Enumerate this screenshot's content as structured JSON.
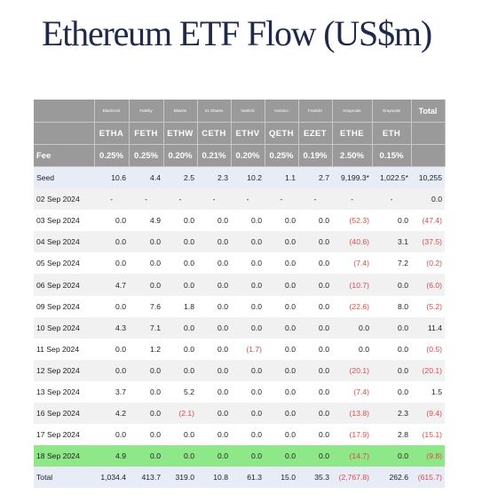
{
  "title": "Ethereum ETF Flow (US$m)",
  "chart_data": {
    "type": "table",
    "issuers": [
      "Blackrock",
      "Fidelity",
      "Bitwise",
      "21 Shares",
      "VanEck",
      "Invesco",
      "Franklin",
      "Grayscale",
      "Grayscale"
    ],
    "total_label": "Total",
    "tickers": [
      "ETHA",
      "FETH",
      "ETHW",
      "CETH",
      "ETHV",
      "QETH",
      "EZET",
      "ETHE",
      "ETH"
    ],
    "fee_label": "Fee",
    "fees": [
      "0.25%",
      "0.25%",
      "0.20%",
      "0.21%",
      "0.20%",
      "0.25%",
      "0.19%",
      "2.50%",
      "0.15%"
    ],
    "rows": [
      {
        "label": "Seed",
        "cells": [
          "10.6",
          "4.4",
          "2.5",
          "2.3",
          "10.2",
          "1.1",
          "2.7",
          "9,199.3*",
          "1,022.5*",
          "10,255"
        ],
        "style": "seed"
      },
      {
        "label": "02 Sep 2024",
        "cells": [
          "-",
          "-",
          "-",
          "-",
          "-",
          "-",
          "-",
          "-",
          "-",
          "0.0"
        ]
      },
      {
        "label": "03 Sep 2024",
        "cells": [
          "0.0",
          "4.9",
          "0.0",
          "0.0",
          "0.0",
          "0.0",
          "0.0",
          "(52.3)",
          "0.0",
          "(47.4)"
        ]
      },
      {
        "label": "04 Sep 2024",
        "cells": [
          "0.0",
          "0.0",
          "0.0",
          "0.0",
          "0.0",
          "0.0",
          "0.0",
          "(40.6)",
          "3.1",
          "(37.5)"
        ]
      },
      {
        "label": "05 Sep 2024",
        "cells": [
          "0.0",
          "0.0",
          "0.0",
          "0.0",
          "0.0",
          "0.0",
          "0.0",
          "(7.4)",
          "7.2",
          "(0.2)"
        ]
      },
      {
        "label": "06 Sep 2024",
        "cells": [
          "4.7",
          "0.0",
          "0.0",
          "0.0",
          "0.0",
          "0.0",
          "0.0",
          "(10.7)",
          "0.0",
          "(6.0)"
        ]
      },
      {
        "label": "09 Sep 2024",
        "cells": [
          "0.0",
          "7.6",
          "1.8",
          "0.0",
          "0.0",
          "0.0",
          "0.0",
          "(22.6)",
          "8.0",
          "(5.2)"
        ]
      },
      {
        "label": "10 Sep 2024",
        "cells": [
          "4.3",
          "7.1",
          "0.0",
          "0.0",
          "0.0",
          "0.0",
          "0.0",
          "0.0",
          "0.0",
          "11.4"
        ]
      },
      {
        "label": "11 Sep 2024",
        "cells": [
          "0.0",
          "1.2",
          "0.0",
          "0.0",
          "(1.7)",
          "0.0",
          "0.0",
          "0.0",
          "0.0",
          "(0.5)"
        ]
      },
      {
        "label": "12 Sep 2024",
        "cells": [
          "0.0",
          "0.0",
          "0.0",
          "0.0",
          "0.0",
          "0.0",
          "0.0",
          "(20.1)",
          "0.0",
          "(20.1)"
        ]
      },
      {
        "label": "13 Sep 2024",
        "cells": [
          "3.7",
          "0.0",
          "5.2",
          "0.0",
          "0.0",
          "0.0",
          "0.0",
          "(7.4)",
          "0.0",
          "1.5"
        ]
      },
      {
        "label": "16 Sep 2024",
        "cells": [
          "4.2",
          "0.0",
          "(2.1)",
          "0.0",
          "0.0",
          "0.0",
          "0.0",
          "(13.8)",
          "2.3",
          "(9.4)"
        ]
      },
      {
        "label": "17 Sep 2024",
        "cells": [
          "0.0",
          "0.0",
          "0.0",
          "0.0",
          "0.0",
          "0.0",
          "0.0",
          "(17.9)",
          "2.8",
          "(15.1)"
        ]
      },
      {
        "label": "18 Sep 2024",
        "cells": [
          "4.9",
          "0.0",
          "0.0",
          "0.0",
          "0.0",
          "0.0",
          "0.0",
          "(14.7)",
          "0.0",
          "(9.8)"
        ],
        "style": "highlight"
      },
      {
        "label": "Total",
        "cells": [
          "1,034.4",
          "413.7",
          "319.0",
          "10.8",
          "61.3",
          "15.0",
          "35.3",
          "(2,767.8)",
          "262.6",
          "(615.7)"
        ],
        "style": "total"
      }
    ],
    "colors": {
      "header_bg": "#9a9a9a",
      "header_text": "#ffffff",
      "seed_bg": "#e8ecf7",
      "highlight_bg": "#8ee888",
      "negative_text": "#d94b4b",
      "stripe_bg": "#f1f1f1"
    }
  }
}
